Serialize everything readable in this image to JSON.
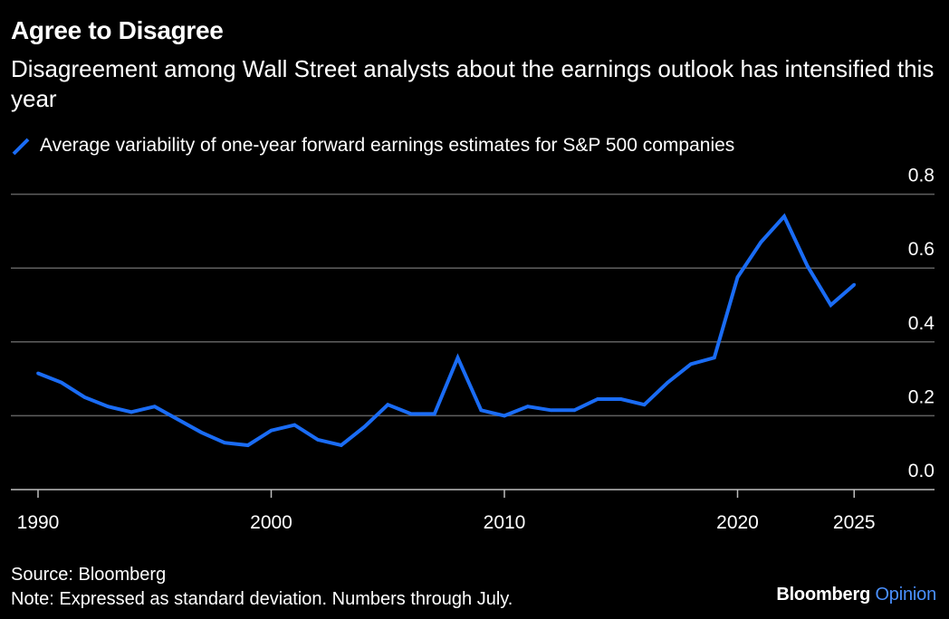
{
  "header": {
    "title": "Agree to Disagree",
    "subtitle": "Disagreement among Wall Street analysts about the earnings outlook has intensified this year"
  },
  "footer": {
    "source": "Source: Bloomberg",
    "note": "Note: Expressed as standard deviation. Numbers through July.",
    "brand_primary": "Bloomberg",
    "brand_secondary": "Opinion"
  },
  "colors": {
    "background": "#000000",
    "series": "#1a6cf5",
    "grid": "#5f5f5f",
    "text": "#ffffff",
    "brand_accent": "#4a90ff"
  },
  "chart_data": {
    "type": "line",
    "title": "Agree to Disagree",
    "subtitle": "Disagreement among Wall Street analysts about the earnings outlook has intensified this year",
    "xlabel": "",
    "ylabel": "",
    "x_ticks": [
      1990,
      2000,
      2010,
      2020,
      2025
    ],
    "y_ticks": [
      "0.0",
      "0.2",
      "0.4",
      "0.6",
      "0.8"
    ],
    "ylim": [
      0,
      0.8
    ],
    "xlim": [
      1989,
      2029
    ],
    "y_axis_position": "right",
    "grid": true,
    "legend_position": "top-left",
    "series": [
      {
        "name": "Average variability of one-year forward earnings estimates for S&P 500 companies",
        "x": [
          1990,
          1991,
          1992,
          1993,
          1994,
          1995,
          1996,
          1997,
          1998,
          1999,
          2000,
          2001,
          2002,
          2003,
          2004,
          2005,
          2006,
          2007,
          2008,
          2009,
          2010,
          2011,
          2012,
          2013,
          2014,
          2015,
          2016,
          2017,
          2018,
          2019,
          2020,
          2021,
          2022,
          2023,
          2024,
          2025
        ],
        "values": [
          0.315,
          0.29,
          0.25,
          0.225,
          0.21,
          0.225,
          0.19,
          0.155,
          0.127,
          0.12,
          0.16,
          0.175,
          0.135,
          0.12,
          0.17,
          0.23,
          0.205,
          0.205,
          0.357,
          0.215,
          0.2,
          0.225,
          0.215,
          0.215,
          0.245,
          0.245,
          0.23,
          0.29,
          0.34,
          0.357,
          0.575,
          0.67,
          0.74,
          0.605,
          0.5,
          0.555
        ]
      }
    ]
  }
}
